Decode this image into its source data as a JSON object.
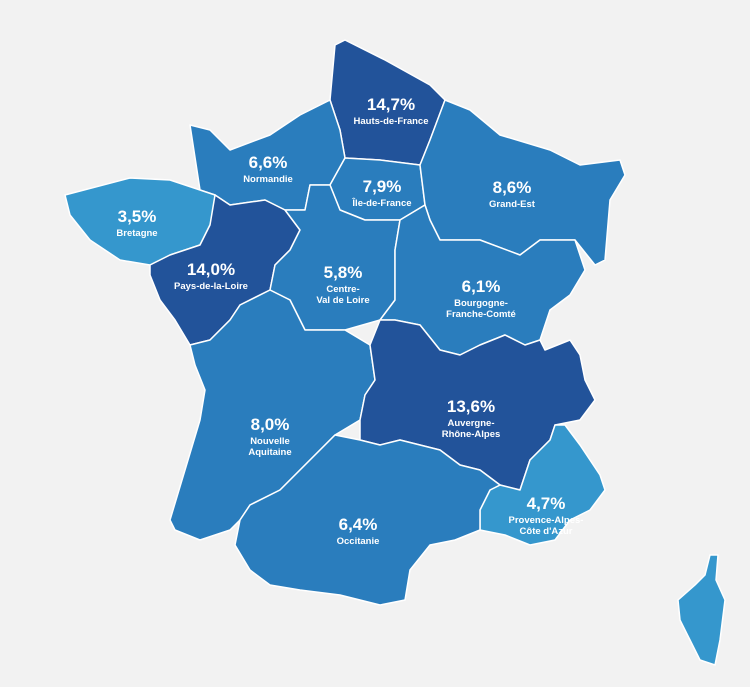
{
  "regions": [
    {
      "name": [
        "Hauts-de-France"
      ],
      "value": "14,7%",
      "color": "#22539a"
    },
    {
      "name": [
        "Normandie"
      ],
      "value": "6,6%",
      "color": "#2a7dbd"
    },
    {
      "name": [
        "Île-de-France"
      ],
      "value": "7,9%",
      "color": "#2a7dbd"
    },
    {
      "name": [
        "Grand-Est"
      ],
      "value": "8,6%",
      "color": "#2a7dbd"
    },
    {
      "name": [
        "Bretagne"
      ],
      "value": "3,5%",
      "color": "#3597cd"
    },
    {
      "name": [
        "Pays-de-la-Loire"
      ],
      "value": "14,0%",
      "color": "#22539a"
    },
    {
      "name": [
        "Centre-",
        "Val de Loire"
      ],
      "value": "5,8%",
      "color": "#2a7dbd"
    },
    {
      "name": [
        "Bourgogne-",
        "Franche-Comté"
      ],
      "value": "6,1%",
      "color": "#2a7dbd"
    },
    {
      "name": [
        "Nouvelle",
        "Aquitaine"
      ],
      "value": "8,0%",
      "color": "#2a7dbd"
    },
    {
      "name": [
        "Auvergne-",
        "Rhône-Alpes"
      ],
      "value": "13,6%",
      "color": "#22539a"
    },
    {
      "name": [
        "Provence-Alpes-",
        "Côte d'Azur"
      ],
      "value": "4,7%",
      "color": "#3597cd"
    },
    {
      "name": [
        "Occitanie"
      ],
      "value": "6,4%",
      "color": "#2a7dbd"
    },
    {
      "name": [],
      "value": null,
      "color": "#3597cd"
    }
  ]
}
